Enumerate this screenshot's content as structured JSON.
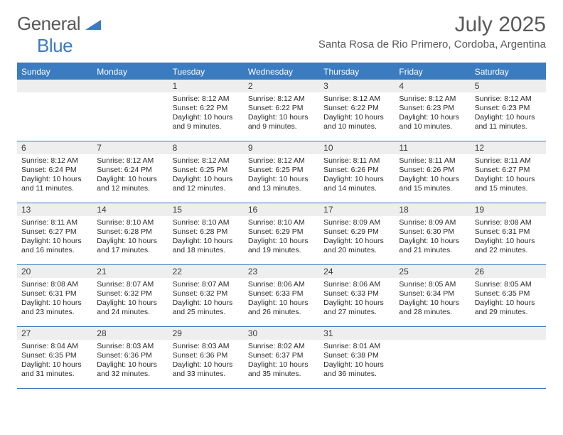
{
  "brand": {
    "part1": "General",
    "part2": "Blue"
  },
  "title": "July 2025",
  "location": "Santa Rosa de Rio Primero, Cordoba, Argentina",
  "colors": {
    "accent": "#3b7bbf",
    "headerText": "#ffffff",
    "bodyText": "#2b2b2b",
    "dayNumBg": "#eeeeee",
    "brandGray": "#58595b"
  },
  "dayNames": [
    "Sunday",
    "Monday",
    "Tuesday",
    "Wednesday",
    "Thursday",
    "Friday",
    "Saturday"
  ],
  "weeks": [
    [
      null,
      null,
      {
        "n": "1",
        "sr": "8:12 AM",
        "ss": "6:22 PM",
        "dl": "10 hours and 9 minutes."
      },
      {
        "n": "2",
        "sr": "8:12 AM",
        "ss": "6:22 PM",
        "dl": "10 hours and 9 minutes."
      },
      {
        "n": "3",
        "sr": "8:12 AM",
        "ss": "6:22 PM",
        "dl": "10 hours and 10 minutes."
      },
      {
        "n": "4",
        "sr": "8:12 AM",
        "ss": "6:23 PM",
        "dl": "10 hours and 10 minutes."
      },
      {
        "n": "5",
        "sr": "8:12 AM",
        "ss": "6:23 PM",
        "dl": "10 hours and 11 minutes."
      }
    ],
    [
      {
        "n": "6",
        "sr": "8:12 AM",
        "ss": "6:24 PM",
        "dl": "10 hours and 11 minutes."
      },
      {
        "n": "7",
        "sr": "8:12 AM",
        "ss": "6:24 PM",
        "dl": "10 hours and 12 minutes."
      },
      {
        "n": "8",
        "sr": "8:12 AM",
        "ss": "6:25 PM",
        "dl": "10 hours and 12 minutes."
      },
      {
        "n": "9",
        "sr": "8:12 AM",
        "ss": "6:25 PM",
        "dl": "10 hours and 13 minutes."
      },
      {
        "n": "10",
        "sr": "8:11 AM",
        "ss": "6:26 PM",
        "dl": "10 hours and 14 minutes."
      },
      {
        "n": "11",
        "sr": "8:11 AM",
        "ss": "6:26 PM",
        "dl": "10 hours and 15 minutes."
      },
      {
        "n": "12",
        "sr": "8:11 AM",
        "ss": "6:27 PM",
        "dl": "10 hours and 15 minutes."
      }
    ],
    [
      {
        "n": "13",
        "sr": "8:11 AM",
        "ss": "6:27 PM",
        "dl": "10 hours and 16 minutes."
      },
      {
        "n": "14",
        "sr": "8:10 AM",
        "ss": "6:28 PM",
        "dl": "10 hours and 17 minutes."
      },
      {
        "n": "15",
        "sr": "8:10 AM",
        "ss": "6:28 PM",
        "dl": "10 hours and 18 minutes."
      },
      {
        "n": "16",
        "sr": "8:10 AM",
        "ss": "6:29 PM",
        "dl": "10 hours and 19 minutes."
      },
      {
        "n": "17",
        "sr": "8:09 AM",
        "ss": "6:29 PM",
        "dl": "10 hours and 20 minutes."
      },
      {
        "n": "18",
        "sr": "8:09 AM",
        "ss": "6:30 PM",
        "dl": "10 hours and 21 minutes."
      },
      {
        "n": "19",
        "sr": "8:08 AM",
        "ss": "6:31 PM",
        "dl": "10 hours and 22 minutes."
      }
    ],
    [
      {
        "n": "20",
        "sr": "8:08 AM",
        "ss": "6:31 PM",
        "dl": "10 hours and 23 minutes."
      },
      {
        "n": "21",
        "sr": "8:07 AM",
        "ss": "6:32 PM",
        "dl": "10 hours and 24 minutes."
      },
      {
        "n": "22",
        "sr": "8:07 AM",
        "ss": "6:32 PM",
        "dl": "10 hours and 25 minutes."
      },
      {
        "n": "23",
        "sr": "8:06 AM",
        "ss": "6:33 PM",
        "dl": "10 hours and 26 minutes."
      },
      {
        "n": "24",
        "sr": "8:06 AM",
        "ss": "6:33 PM",
        "dl": "10 hours and 27 minutes."
      },
      {
        "n": "25",
        "sr": "8:05 AM",
        "ss": "6:34 PM",
        "dl": "10 hours and 28 minutes."
      },
      {
        "n": "26",
        "sr": "8:05 AM",
        "ss": "6:35 PM",
        "dl": "10 hours and 29 minutes."
      }
    ],
    [
      {
        "n": "27",
        "sr": "8:04 AM",
        "ss": "6:35 PM",
        "dl": "10 hours and 31 minutes."
      },
      {
        "n": "28",
        "sr": "8:03 AM",
        "ss": "6:36 PM",
        "dl": "10 hours and 32 minutes."
      },
      {
        "n": "29",
        "sr": "8:03 AM",
        "ss": "6:36 PM",
        "dl": "10 hours and 33 minutes."
      },
      {
        "n": "30",
        "sr": "8:02 AM",
        "ss": "6:37 PM",
        "dl": "10 hours and 35 minutes."
      },
      {
        "n": "31",
        "sr": "8:01 AM",
        "ss": "6:38 PM",
        "dl": "10 hours and 36 minutes."
      },
      null,
      null
    ]
  ],
  "labels": {
    "sunrise": "Sunrise:",
    "sunset": "Sunset:",
    "daylight": "Daylight:"
  }
}
